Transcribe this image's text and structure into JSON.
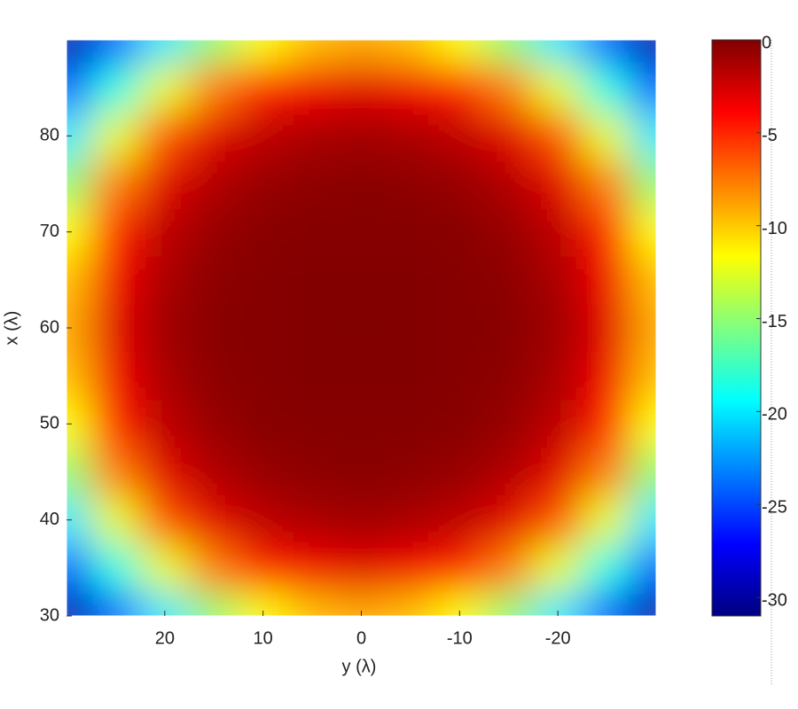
{
  "chart_data": {
    "type": "heatmap",
    "xlabel": "y (λ)",
    "ylabel": "x (λ)",
    "x": [
      30,
      25,
      20,
      15,
      10,
      5,
      0,
      -5,
      -10,
      -15,
      -20,
      -25,
      -30
    ],
    "y": [
      30,
      35,
      40,
      45,
      50,
      55,
      60,
      65,
      70,
      75,
      80,
      85,
      90
    ],
    "values": [
      [
        -30,
        -24.6,
        -20.1,
        -15.1,
        -11.7,
        -9.7,
        -9,
        -9.7,
        -11.7,
        -15.1,
        -20.1,
        -24.6,
        -30
      ],
      [
        -24.6,
        -18.7,
        -12.4,
        -7.7,
        -4.9,
        -3.5,
        -3,
        -3.5,
        -4.9,
        -7.7,
        -12.4,
        -18.7,
        -24.6
      ],
      [
        -20.1,
        -12.4,
        -6.4,
        -3,
        -1.9,
        -1.3,
        -1,
        -1.3,
        -1.9,
        -3,
        -6.4,
        -12.4,
        -20.1
      ],
      [
        -15.1,
        -7.7,
        -3,
        -1.5,
        -0.7,
        -0.4,
        -0.3,
        -0.4,
        -0.7,
        -1.5,
        -3,
        -7.7,
        -15.1
      ],
      [
        -11.7,
        -4.9,
        -1.9,
        -0.7,
        -0.3,
        -0.2,
        -0.2,
        -0.2,
        -0.3,
        -0.7,
        -1.9,
        -4.9,
        -11.7
      ],
      [
        -9.7,
        -3.5,
        -1.3,
        -0.4,
        -0.2,
        -0.1,
        -0.1,
        -0.1,
        -0.2,
        -0.4,
        -1.3,
        -3.5,
        -9.7
      ],
      [
        -9,
        -3,
        -1,
        -0.3,
        -0.2,
        -0.1,
        0,
        -0.1,
        -0.2,
        -0.3,
        -1,
        -3,
        -9
      ],
      [
        -9.7,
        -3.5,
        -1.3,
        -0.4,
        -0.2,
        -0.1,
        -0.1,
        -0.1,
        -0.2,
        -0.4,
        -1.3,
        -3.5,
        -9.7
      ],
      [
        -11.7,
        -4.9,
        -1.9,
        -0.7,
        -0.3,
        -0.2,
        -0.2,
        -0.2,
        -0.3,
        -0.7,
        -1.9,
        -4.9,
        -11.7
      ],
      [
        -15.1,
        -7.7,
        -3,
        -1.5,
        -0.7,
        -0.4,
        -0.3,
        -0.4,
        -0.7,
        -1.5,
        -3,
        -7.7,
        -15.1
      ],
      [
        -20.1,
        -12.4,
        -6.4,
        -3,
        -1.9,
        -1.3,
        -1,
        -1.3,
        -1.9,
        -3,
        -6.4,
        -12.4,
        -20.1
      ],
      [
        -24.6,
        -18.7,
        -12.4,
        -7.7,
        -4.9,
        -3.5,
        -3,
        -3.5,
        -4.9,
        -7.7,
        -12.4,
        -18.7,
        -24.6
      ],
      [
        -30,
        -24.6,
        -20.1,
        -15.1,
        -11.7,
        -9.7,
        -9,
        -9.7,
        -11.7,
        -15.1,
        -20.1,
        -24.6,
        -30
      ]
    ],
    "xlim": [
      30,
      -30
    ],
    "xticks": [
      20,
      10,
      0,
      -10,
      -20
    ],
    "ylim": [
      30,
      90
    ],
    "yticks": [
      30,
      40,
      50,
      60,
      70,
      80
    ],
    "colormap": "jet",
    "clim": [
      -31,
      0
    ],
    "cticks": [
      0,
      -5,
      -10,
      -15,
      -20,
      -25,
      -30
    ]
  }
}
